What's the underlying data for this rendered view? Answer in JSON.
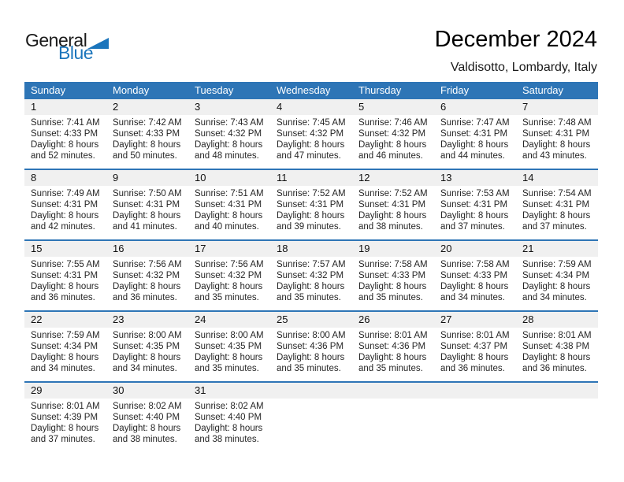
{
  "logo": {
    "general": "General",
    "blue": "Blue"
  },
  "header": {
    "title": "December 2024",
    "location": "Valdisotto, Lombardy, Italy"
  },
  "colors": {
    "header_bg": "#2E75B6",
    "accent": "#2E75B6",
    "band_bg": "#F0F0F0",
    "logo_blue": "#1B75BC"
  },
  "calendar": {
    "day_headers": [
      "Sunday",
      "Monday",
      "Tuesday",
      "Wednesday",
      "Thursday",
      "Friday",
      "Saturday"
    ],
    "weeks": [
      [
        {
          "day": "1",
          "lines": [
            "Sunrise: 7:41 AM",
            "Sunset: 4:33 PM",
            "Daylight: 8 hours",
            "and 52 minutes."
          ]
        },
        {
          "day": "2",
          "lines": [
            "Sunrise: 7:42 AM",
            "Sunset: 4:33 PM",
            "Daylight: 8 hours",
            "and 50 minutes."
          ]
        },
        {
          "day": "3",
          "lines": [
            "Sunrise: 7:43 AM",
            "Sunset: 4:32 PM",
            "Daylight: 8 hours",
            "and 48 minutes."
          ]
        },
        {
          "day": "4",
          "lines": [
            "Sunrise: 7:45 AM",
            "Sunset: 4:32 PM",
            "Daylight: 8 hours",
            "and 47 minutes."
          ]
        },
        {
          "day": "5",
          "lines": [
            "Sunrise: 7:46 AM",
            "Sunset: 4:32 PM",
            "Daylight: 8 hours",
            "and 46 minutes."
          ]
        },
        {
          "day": "6",
          "lines": [
            "Sunrise: 7:47 AM",
            "Sunset: 4:31 PM",
            "Daylight: 8 hours",
            "and 44 minutes."
          ]
        },
        {
          "day": "7",
          "lines": [
            "Sunrise: 7:48 AM",
            "Sunset: 4:31 PM",
            "Daylight: 8 hours",
            "and 43 minutes."
          ]
        }
      ],
      [
        {
          "day": "8",
          "lines": [
            "Sunrise: 7:49 AM",
            "Sunset: 4:31 PM",
            "Daylight: 8 hours",
            "and 42 minutes."
          ]
        },
        {
          "day": "9",
          "lines": [
            "Sunrise: 7:50 AM",
            "Sunset: 4:31 PM",
            "Daylight: 8 hours",
            "and 41 minutes."
          ]
        },
        {
          "day": "10",
          "lines": [
            "Sunrise: 7:51 AM",
            "Sunset: 4:31 PM",
            "Daylight: 8 hours",
            "and 40 minutes."
          ]
        },
        {
          "day": "11",
          "lines": [
            "Sunrise: 7:52 AM",
            "Sunset: 4:31 PM",
            "Daylight: 8 hours",
            "and 39 minutes."
          ]
        },
        {
          "day": "12",
          "lines": [
            "Sunrise: 7:52 AM",
            "Sunset: 4:31 PM",
            "Daylight: 8 hours",
            "and 38 minutes."
          ]
        },
        {
          "day": "13",
          "lines": [
            "Sunrise: 7:53 AM",
            "Sunset: 4:31 PM",
            "Daylight: 8 hours",
            "and 37 minutes."
          ]
        },
        {
          "day": "14",
          "lines": [
            "Sunrise: 7:54 AM",
            "Sunset: 4:31 PM",
            "Daylight: 8 hours",
            "and 37 minutes."
          ]
        }
      ],
      [
        {
          "day": "15",
          "lines": [
            "Sunrise: 7:55 AM",
            "Sunset: 4:31 PM",
            "Daylight: 8 hours",
            "and 36 minutes."
          ]
        },
        {
          "day": "16",
          "lines": [
            "Sunrise: 7:56 AM",
            "Sunset: 4:32 PM",
            "Daylight: 8 hours",
            "and 36 minutes."
          ]
        },
        {
          "day": "17",
          "lines": [
            "Sunrise: 7:56 AM",
            "Sunset: 4:32 PM",
            "Daylight: 8 hours",
            "and 35 minutes."
          ]
        },
        {
          "day": "18",
          "lines": [
            "Sunrise: 7:57 AM",
            "Sunset: 4:32 PM",
            "Daylight: 8 hours",
            "and 35 minutes."
          ]
        },
        {
          "day": "19",
          "lines": [
            "Sunrise: 7:58 AM",
            "Sunset: 4:33 PM",
            "Daylight: 8 hours",
            "and 35 minutes."
          ]
        },
        {
          "day": "20",
          "lines": [
            "Sunrise: 7:58 AM",
            "Sunset: 4:33 PM",
            "Daylight: 8 hours",
            "and 34 minutes."
          ]
        },
        {
          "day": "21",
          "lines": [
            "Sunrise: 7:59 AM",
            "Sunset: 4:34 PM",
            "Daylight: 8 hours",
            "and 34 minutes."
          ]
        }
      ],
      [
        {
          "day": "22",
          "lines": [
            "Sunrise: 7:59 AM",
            "Sunset: 4:34 PM",
            "Daylight: 8 hours",
            "and 34 minutes."
          ]
        },
        {
          "day": "23",
          "lines": [
            "Sunrise: 8:00 AM",
            "Sunset: 4:35 PM",
            "Daylight: 8 hours",
            "and 34 minutes."
          ]
        },
        {
          "day": "24",
          "lines": [
            "Sunrise: 8:00 AM",
            "Sunset: 4:35 PM",
            "Daylight: 8 hours",
            "and 35 minutes."
          ]
        },
        {
          "day": "25",
          "lines": [
            "Sunrise: 8:00 AM",
            "Sunset: 4:36 PM",
            "Daylight: 8 hours",
            "and 35 minutes."
          ]
        },
        {
          "day": "26",
          "lines": [
            "Sunrise: 8:01 AM",
            "Sunset: 4:36 PM",
            "Daylight: 8 hours",
            "and 35 minutes."
          ]
        },
        {
          "day": "27",
          "lines": [
            "Sunrise: 8:01 AM",
            "Sunset: 4:37 PM",
            "Daylight: 8 hours",
            "and 36 minutes."
          ]
        },
        {
          "day": "28",
          "lines": [
            "Sunrise: 8:01 AM",
            "Sunset: 4:38 PM",
            "Daylight: 8 hours",
            "and 36 minutes."
          ]
        }
      ],
      [
        {
          "day": "29",
          "lines": [
            "Sunrise: 8:01 AM",
            "Sunset: 4:39 PM",
            "Daylight: 8 hours",
            "and 37 minutes."
          ]
        },
        {
          "day": "30",
          "lines": [
            "Sunrise: 8:02 AM",
            "Sunset: 4:40 PM",
            "Daylight: 8 hours",
            "and 38 minutes."
          ]
        },
        {
          "day": "31",
          "lines": [
            "Sunrise: 8:02 AM",
            "Sunset: 4:40 PM",
            "Daylight: 8 hours",
            "and 38 minutes."
          ]
        },
        null,
        null,
        null,
        null
      ]
    ]
  }
}
